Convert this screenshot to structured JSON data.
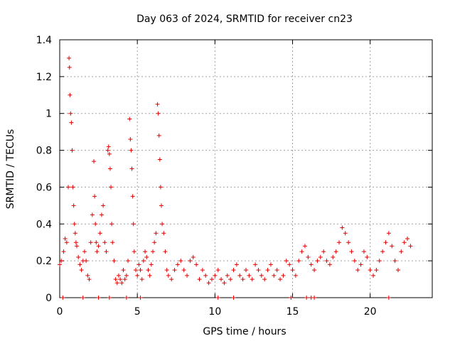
{
  "chart_data": {
    "type": "scatter",
    "title": "Day 063 of 2024, SRMTID for receiver cn23",
    "xlabel": "GPS time / hours",
    "ylabel": "SRMTID / TECUs",
    "xlim": [
      0,
      24
    ],
    "ylim": [
      0,
      1.4
    ],
    "x_ticks": [
      0,
      5,
      10,
      15,
      20
    ],
    "x_tick_labels": [
      "0",
      "5",
      "10",
      "15",
      "20"
    ],
    "y_ticks": [
      0,
      0.2,
      0.4,
      0.6,
      0.8,
      1.0,
      1.2,
      1.4
    ],
    "y_tick_labels": [
      "0",
      "0.2",
      "0.4",
      "0.6",
      "0.8",
      "1",
      "1.2",
      "1.4"
    ],
    "grid": true,
    "marker": "+",
    "series": [
      {
        "name": "cn23",
        "color": "#e00000",
        "x": [
          0.0,
          0.1,
          0.25,
          0.35,
          0.45,
          0.55,
          0.6,
          0.63,
          0.66,
          0.7,
          0.75,
          0.8,
          0.85,
          0.9,
          0.95,
          1.0,
          1.05,
          1.1,
          1.2,
          1.3,
          1.4,
          1.5,
          1.6,
          1.7,
          1.8,
          1.9,
          2.0,
          2.1,
          2.2,
          2.25,
          2.3,
          2.35,
          2.4,
          2.5,
          2.6,
          2.7,
          2.8,
          2.9,
          3.0,
          3.1,
          3.15,
          3.2,
          3.25,
          3.3,
          3.35,
          3.4,
          3.5,
          3.6,
          3.7,
          3.8,
          3.9,
          4.0,
          4.1,
          4.2,
          4.3,
          4.4,
          4.5,
          4.55,
          4.6,
          4.65,
          4.7,
          4.75,
          4.8,
          4.9,
          5.0,
          5.1,
          5.2,
          5.3,
          5.4,
          5.5,
          5.6,
          5.7,
          5.8,
          5.9,
          6.0,
          6.1,
          6.2,
          6.3,
          6.35,
          6.4,
          6.45,
          6.5,
          6.55,
          6.6,
          6.7,
          6.8,
          6.9,
          7.0,
          7.2,
          7.4,
          7.6,
          7.8,
          8.0,
          8.2,
          8.4,
          8.6,
          8.8,
          9.0,
          9.2,
          9.4,
          9.6,
          9.8,
          10.0,
          10.2,
          10.4,
          10.6,
          10.8,
          11.0,
          11.2,
          11.4,
          11.6,
          11.8,
          12.0,
          12.2,
          12.4,
          12.6,
          12.8,
          13.0,
          13.2,
          13.4,
          13.6,
          13.8,
          14.0,
          14.2,
          14.4,
          14.6,
          14.8,
          15.0,
          15.2,
          15.4,
          15.6,
          15.8,
          16.0,
          16.2,
          16.4,
          16.6,
          16.8,
          17.0,
          17.2,
          17.4,
          17.6,
          17.8,
          18.0,
          18.2,
          18.4,
          18.6,
          18.8,
          19.0,
          19.2,
          19.4,
          19.6,
          19.8,
          20.0,
          20.2,
          20.4,
          20.6,
          20.8,
          21.0,
          21.2,
          21.4,
          21.6,
          21.8,
          22.0,
          22.2,
          22.4,
          22.6,
          0.2,
          1.5,
          2.5,
          3.2,
          4.3,
          5.2,
          10.2,
          11.2,
          14.9,
          15.9,
          16.2,
          16.4,
          21.2
        ],
        "y": [
          0.18,
          0.2,
          0.25,
          0.32,
          0.3,
          0.6,
          1.3,
          1.25,
          1.1,
          1.0,
          0.95,
          0.8,
          0.6,
          0.5,
          0.4,
          0.35,
          0.3,
          0.28,
          0.22,
          0.18,
          0.15,
          0.2,
          0.25,
          0.2,
          0.12,
          0.1,
          0.3,
          0.45,
          0.74,
          0.55,
          0.4,
          0.3,
          0.25,
          0.28,
          0.35,
          0.45,
          0.5,
          0.3,
          0.25,
          0.8,
          0.82,
          0.78,
          0.7,
          0.6,
          0.4,
          0.3,
          0.2,
          0.1,
          0.08,
          0.12,
          0.1,
          0.08,
          0.15,
          0.1,
          0.12,
          0.2,
          0.97,
          0.86,
          0.8,
          0.7,
          0.55,
          0.4,
          0.25,
          0.15,
          0.12,
          0.18,
          0.15,
          0.1,
          0.2,
          0.25,
          0.22,
          0.15,
          0.12,
          0.18,
          0.25,
          0.3,
          0.35,
          1.05,
          1.0,
          0.88,
          0.75,
          0.6,
          0.5,
          0.4,
          0.35,
          0.25,
          0.15,
          0.12,
          0.1,
          0.15,
          0.18,
          0.2,
          0.15,
          0.12,
          0.2,
          0.22,
          0.18,
          0.1,
          0.15,
          0.12,
          0.08,
          0.1,
          0.12,
          0.15,
          0.1,
          0.08,
          0.12,
          0.1,
          0.15,
          0.18,
          0.12,
          0.1,
          0.15,
          0.12,
          0.1,
          0.18,
          0.15,
          0.12,
          0.1,
          0.15,
          0.18,
          0.12,
          0.15,
          0.1,
          0.12,
          0.2,
          0.18,
          0.15,
          0.12,
          0.2,
          0.25,
          0.28,
          0.22,
          0.18,
          0.15,
          0.2,
          0.22,
          0.25,
          0.2,
          0.18,
          0.22,
          0.25,
          0.3,
          0.38,
          0.35,
          0.3,
          0.25,
          0.2,
          0.15,
          0.18,
          0.25,
          0.22,
          0.15,
          0.12,
          0.15,
          0.2,
          0.25,
          0.3,
          0.35,
          0.28,
          0.2,
          0.15,
          0.25,
          0.3,
          0.32,
          0.28,
          0.0,
          0.0,
          0.0,
          0.0,
          0.0,
          0.0,
          0.0,
          0.0,
          0.0,
          0.0,
          0.0,
          0.0,
          0.0
        ]
      }
    ]
  }
}
